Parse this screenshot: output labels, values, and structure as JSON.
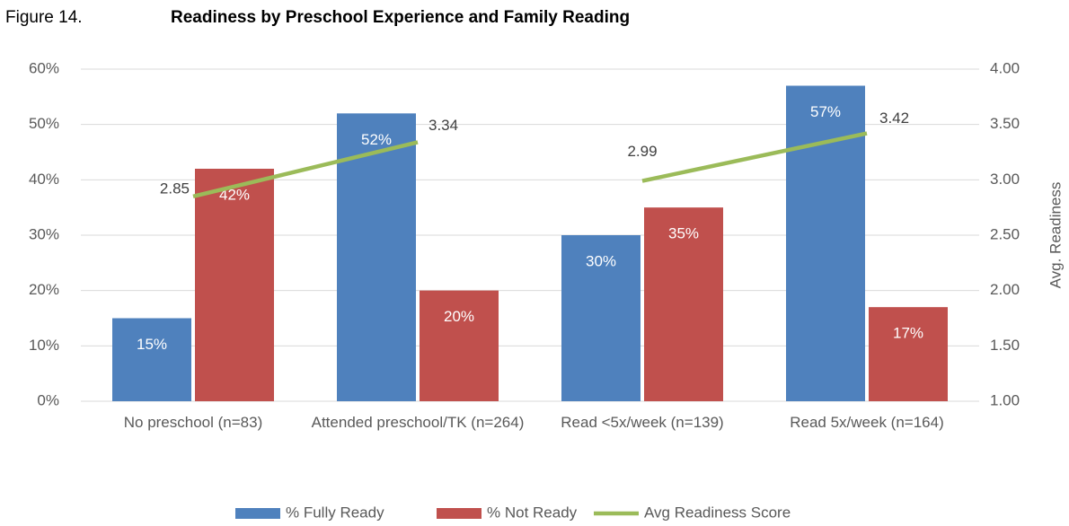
{
  "chart_data": {
    "type": "bar",
    "figure_label": "Figure 14.",
    "title": "Readiness by Preschool Experience and Family Reading",
    "categories": [
      "No preschool (n=83)",
      "Attended preschool/TK (n=264)",
      "Read <5x/week (n=139)",
      "Read 5x/week (n=164)"
    ],
    "series": [
      {
        "name": "% Fully Ready",
        "color": "#4f81bd",
        "values": [
          15,
          52,
          30,
          57
        ],
        "value_labels": [
          "15%",
          "52%",
          "30%",
          "57%"
        ]
      },
      {
        "name": "% Not Ready",
        "color": "#c0504d",
        "values": [
          42,
          20,
          35,
          17
        ],
        "value_labels": [
          "42%",
          "20%",
          "35%",
          "17%"
        ]
      },
      {
        "name": "Avg Readiness Score",
        "type": "line",
        "axis": "y2",
        "color": "#9bbb59",
        "values": [
          2.85,
          3.34,
          2.99,
          3.42
        ],
        "break_after": [
          1
        ]
      }
    ],
    "ylim": [
      0,
      60
    ],
    "yticks": [
      {
        "value": 0,
        "label": "0%"
      },
      {
        "value": 10,
        "label": "10%"
      },
      {
        "value": 20,
        "label": "20%"
      },
      {
        "value": 30,
        "label": "30%"
      },
      {
        "value": 40,
        "label": "40%"
      },
      {
        "value": 50,
        "label": "50%"
      },
      {
        "value": 60,
        "label": "60%"
      }
    ],
    "y2lim": [
      1,
      4
    ],
    "y2ticks": [
      {
        "value": 1,
        "label": "1.00"
      },
      {
        "value": 1.5,
        "label": "1.50"
      },
      {
        "value": 2,
        "label": "2.00"
      },
      {
        "value": 2.5,
        "label": "2.50"
      },
      {
        "value": 3,
        "label": "3.00"
      },
      {
        "value": 3.5,
        "label": "3.50"
      },
      {
        "value": 4,
        "label": "4.00"
      }
    ],
    "y2_label": "Avg. Readiness",
    "grid": true,
    "legend": "bottom"
  }
}
